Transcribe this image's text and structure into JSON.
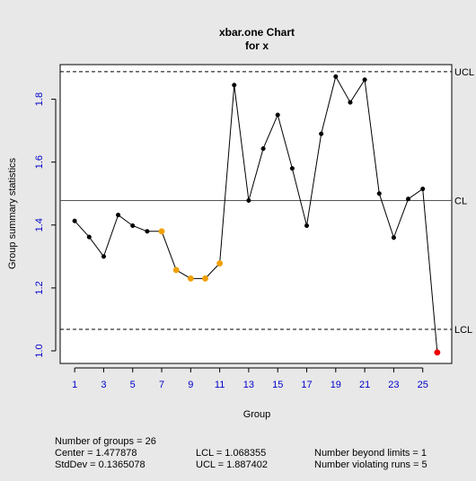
{
  "chart_data": {
    "type": "line",
    "title": "xbar.one Chart",
    "subtitle": "for x",
    "xlabel": "Group",
    "ylabel": "Group summary statistics",
    "xlim": [
      0,
      27
    ],
    "ylim": [
      0.96,
      1.91
    ],
    "x_ticks": [
      1,
      3,
      5,
      7,
      9,
      11,
      13,
      15,
      17,
      19,
      21,
      23,
      25
    ],
    "y_ticks": [
      1.0,
      1.2,
      1.4,
      1.6,
      1.8
    ],
    "y_tick_labels": [
      "1.0",
      "1.2",
      "1.4",
      "1.6",
      "1.8"
    ],
    "x": [
      1,
      2,
      3,
      4,
      5,
      6,
      7,
      8,
      9,
      10,
      11,
      12,
      13,
      14,
      15,
      16,
      17,
      18,
      19,
      20,
      21,
      22,
      23,
      24,
      25,
      26
    ],
    "values": [
      1.413,
      1.362,
      1.3,
      1.432,
      1.398,
      1.38,
      1.38,
      1.257,
      1.23,
      1.23,
      1.278,
      1.845,
      1.478,
      1.643,
      1.75,
      1.58,
      1.398,
      1.69,
      1.872,
      1.79,
      1.862,
      1.5,
      1.36,
      1.483,
      1.515,
      0.995
    ],
    "point_status": [
      "normal",
      "normal",
      "normal",
      "normal",
      "normal",
      "normal",
      "run",
      "run",
      "run",
      "run",
      "run",
      "normal",
      "normal",
      "normal",
      "normal",
      "normal",
      "normal",
      "normal",
      "normal",
      "normal",
      "normal",
      "normal",
      "normal",
      "normal",
      "normal",
      "beyond"
    ],
    "limits": [
      {
        "name": "UCL",
        "value": 1.887402,
        "style": "dashed"
      },
      {
        "name": "CL",
        "value": 1.477878,
        "style": "solid"
      },
      {
        "name": "LCL",
        "value": 1.068355,
        "style": "dashed"
      }
    ],
    "grid": false,
    "legend": "none",
    "colors": {
      "normal": "#000000",
      "run": "#f0a000",
      "beyond": "#ee0000",
      "ticks": "#0000cc",
      "background": "#e8e8e8"
    }
  },
  "stats": {
    "groups": "Number of groups = 26",
    "center": "Center = 1.477878",
    "stddev": "StdDev = 0.1365078",
    "lcl": "LCL = 1.068355",
    "ucl": "UCL = 1.887402",
    "beyond": "Number beyond limits = 1",
    "runs": "Number violating runs = 5"
  }
}
